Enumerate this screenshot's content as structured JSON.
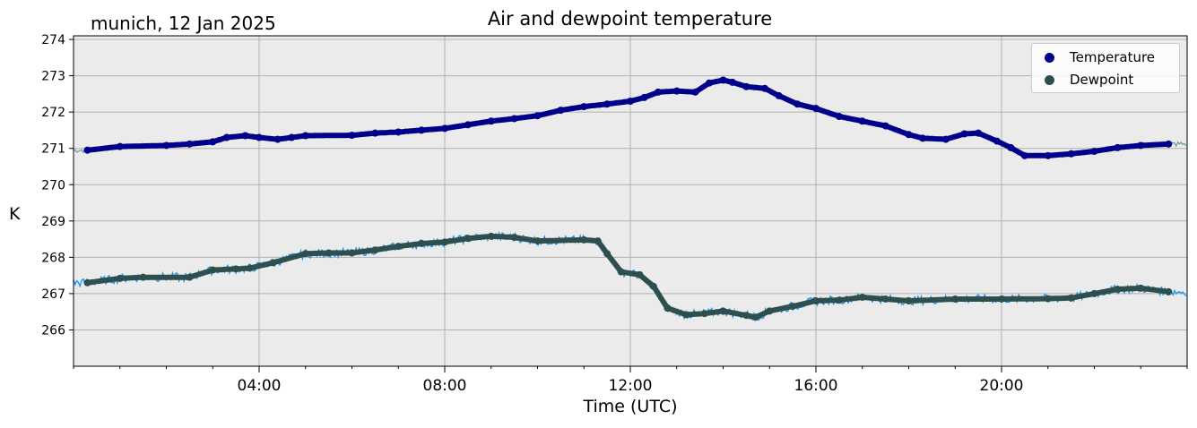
{
  "chart_data": {
    "type": "line",
    "title": "Air and dewpoint temperature",
    "subtitle": "munich, 12 Jan 2025",
    "xlabel": "Time (UTC)",
    "ylabel": "K",
    "x_unit": "hours UTC",
    "xlim": [
      0,
      24
    ],
    "ylim": [
      265,
      274.1
    ],
    "x_ticks": [
      {
        "value": 4,
        "label": "04:00"
      },
      {
        "value": 8,
        "label": "08:00"
      },
      {
        "value": 12,
        "label": "12:00"
      },
      {
        "value": 16,
        "label": "16:00"
      },
      {
        "value": 20,
        "label": "20:00"
      }
    ],
    "y_ticks": [
      266,
      267,
      268,
      269,
      270,
      271,
      272,
      273,
      274
    ],
    "grid": true,
    "legend_position": "upper-right",
    "background_color": "#ebebeb",
    "series": [
      {
        "name": "Temperature",
        "style": "marker",
        "color": "#00008b",
        "raw_color": "#6fa3a3",
        "points": [
          [
            0.3,
            270.95
          ],
          [
            1.0,
            271.05
          ],
          [
            2.0,
            271.08
          ],
          [
            2.5,
            271.12
          ],
          [
            3.0,
            271.18
          ],
          [
            3.3,
            271.3
          ],
          [
            3.7,
            271.35
          ],
          [
            4.0,
            271.3
          ],
          [
            4.4,
            271.25
          ],
          [
            4.7,
            271.3
          ],
          [
            5.0,
            271.35
          ],
          [
            6.0,
            271.36
          ],
          [
            6.5,
            271.42
          ],
          [
            7.0,
            271.45
          ],
          [
            7.5,
            271.5
          ],
          [
            8.0,
            271.55
          ],
          [
            8.5,
            271.65
          ],
          [
            9.0,
            271.75
          ],
          [
            9.5,
            271.82
          ],
          [
            10.0,
            271.9
          ],
          [
            10.5,
            272.05
          ],
          [
            11.0,
            272.15
          ],
          [
            11.5,
            272.22
          ],
          [
            12.0,
            272.3
          ],
          [
            12.3,
            272.4
          ],
          [
            12.6,
            272.55
          ],
          [
            13.0,
            272.58
          ],
          [
            13.4,
            272.55
          ],
          [
            13.7,
            272.8
          ],
          [
            14.0,
            272.88
          ],
          [
            14.2,
            272.82
          ],
          [
            14.5,
            272.7
          ],
          [
            14.9,
            272.65
          ],
          [
            15.2,
            272.45
          ],
          [
            15.6,
            272.22
          ],
          [
            16.0,
            272.1
          ],
          [
            16.5,
            271.88
          ],
          [
            17.0,
            271.75
          ],
          [
            17.5,
            271.62
          ],
          [
            18.0,
            271.38
          ],
          [
            18.3,
            271.28
          ],
          [
            18.8,
            271.25
          ],
          [
            19.2,
            271.4
          ],
          [
            19.5,
            271.42
          ],
          [
            19.9,
            271.2
          ],
          [
            20.2,
            271.02
          ],
          [
            20.5,
            270.8
          ],
          [
            21.0,
            270.8
          ],
          [
            21.5,
            270.85
          ],
          [
            22.0,
            270.92
          ],
          [
            22.5,
            271.02
          ],
          [
            23.0,
            271.08
          ],
          [
            23.6,
            271.12
          ]
        ]
      },
      {
        "name": "Dewpoint",
        "style": "marker",
        "color": "#2f4f4f",
        "raw_color": "#2196f3",
        "points": [
          [
            0.3,
            267.3
          ],
          [
            1.0,
            267.42
          ],
          [
            1.5,
            267.45
          ],
          [
            2.5,
            267.45
          ],
          [
            3.0,
            267.65
          ],
          [
            3.5,
            267.68
          ],
          [
            3.8,
            267.7
          ],
          [
            4.3,
            267.85
          ],
          [
            5.0,
            268.1
          ],
          [
            5.5,
            268.12
          ],
          [
            6.0,
            268.12
          ],
          [
            6.5,
            268.2
          ],
          [
            7.0,
            268.3
          ],
          [
            7.5,
            268.38
          ],
          [
            8.0,
            268.42
          ],
          [
            8.5,
            268.52
          ],
          [
            9.0,
            268.58
          ],
          [
            9.5,
            268.55
          ],
          [
            10.0,
            268.45
          ],
          [
            11.0,
            268.48
          ],
          [
            11.3,
            268.45
          ],
          [
            11.5,
            268.1
          ],
          [
            11.8,
            267.6
          ],
          [
            12.2,
            267.52
          ],
          [
            12.5,
            267.2
          ],
          [
            12.8,
            266.6
          ],
          [
            13.2,
            266.42
          ],
          [
            13.6,
            266.45
          ],
          [
            14.0,
            266.52
          ],
          [
            14.5,
            266.4
          ],
          [
            14.7,
            266.35
          ],
          [
            15.0,
            266.52
          ],
          [
            15.5,
            266.65
          ],
          [
            16.0,
            266.8
          ],
          [
            16.5,
            266.82
          ],
          [
            17.0,
            266.9
          ],
          [
            17.5,
            266.85
          ],
          [
            18.0,
            266.8
          ],
          [
            19.0,
            266.85
          ],
          [
            20.0,
            266.85
          ],
          [
            21.0,
            266.86
          ],
          [
            21.5,
            266.88
          ],
          [
            22.0,
            267.0
          ],
          [
            22.5,
            267.12
          ],
          [
            23.0,
            267.15
          ],
          [
            23.6,
            267.05
          ]
        ]
      }
    ]
  }
}
